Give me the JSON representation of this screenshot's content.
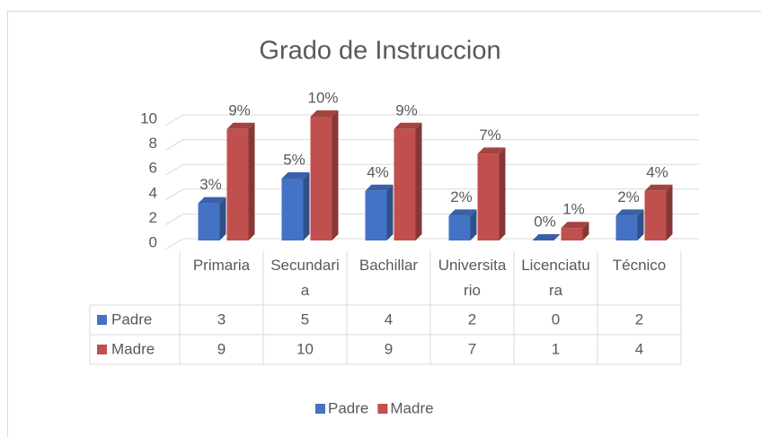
{
  "chart_data": {
    "type": "bar3d",
    "title": "Grado de Instruccion",
    "categories": [
      "Primaria",
      "Secundaria",
      "Bachillar",
      "Universitario",
      "Licenciatura",
      "Técnico"
    ],
    "series": [
      {
        "name": "Padre",
        "color": "#4472c4",
        "values": [
          3,
          5,
          4,
          2,
          0,
          2
        ],
        "value_labels": [
          "3%",
          "5%",
          "4%",
          "2%",
          "0%",
          "2%"
        ]
      },
      {
        "name": "Madre",
        "color": "#c0504d",
        "values": [
          9,
          10,
          9,
          7,
          1,
          4
        ],
        "value_labels": [
          "9%",
          "10%",
          "9%",
          "7%",
          "1%",
          "4%"
        ]
      }
    ],
    "ylim": [
      0,
      10
    ],
    "yticks": [
      0,
      2,
      4,
      6,
      8,
      10
    ],
    "grid": true,
    "legend": "bottom",
    "data_table": true
  }
}
